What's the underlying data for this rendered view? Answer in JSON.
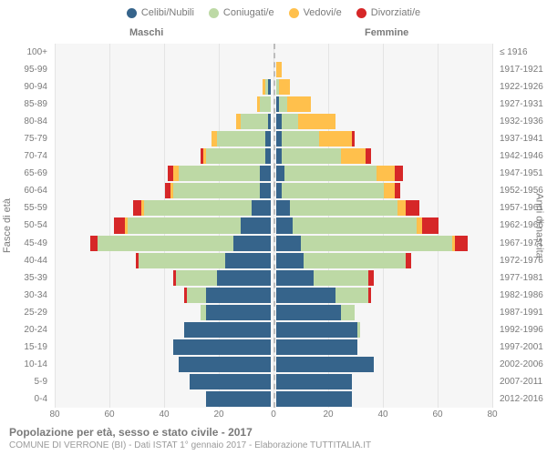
{
  "chart": {
    "type": "population-pyramid",
    "colors": {
      "celibi": "#36648b",
      "coniugati": "#bdd9a5",
      "vedovi": "#ffc04c",
      "divorziati": "#d62728",
      "background": "#f6f6f6",
      "grid": "#e4e4e4",
      "center_dash": "#bcbcbc",
      "text": "#7a7a7a"
    },
    "legend": [
      {
        "label": "Celibi/Nubili",
        "color": "celibi"
      },
      {
        "label": "Coniugati/e",
        "color": "coniugati"
      },
      {
        "label": "Vedovi/e",
        "color": "vedovi"
      },
      {
        "label": "Divorziati/e",
        "color": "divorziati"
      }
    ],
    "header_male": "Maschi",
    "header_female": "Femmine",
    "ytitle_left": "Fasce di età",
    "ytitle_right": "Anni di nascita",
    "xlim": 80,
    "xticks": [
      80,
      60,
      40,
      20,
      0,
      20,
      40,
      60,
      80
    ],
    "title": "Popolazione per età, sesso e stato civile - 2017",
    "subtitle": "COMUNE DI VERRONE (BI) - Dati ISTAT 1° gennaio 2017 - Elaborazione TUTTITALIA.IT",
    "bands": [
      {
        "age": "100+",
        "birth": "≤ 1916",
        "m": {
          "c": 0,
          "k": 0,
          "v": 0,
          "d": 0
        },
        "f": {
          "c": 0,
          "k": 0,
          "v": 0,
          "d": 0
        }
      },
      {
        "age": "95-99",
        "birth": "1917-1921",
        "m": {
          "c": 0,
          "k": 0,
          "v": 0,
          "d": 0
        },
        "f": {
          "c": 0,
          "k": 0,
          "v": 2,
          "d": 0
        }
      },
      {
        "age": "90-94",
        "birth": "1922-1926",
        "m": {
          "c": 1,
          "k": 1,
          "v": 1,
          "d": 0
        },
        "f": {
          "c": 0,
          "k": 1,
          "v": 4,
          "d": 0
        }
      },
      {
        "age": "85-89",
        "birth": "1927-1931",
        "m": {
          "c": 0,
          "k": 4,
          "v": 1,
          "d": 0
        },
        "f": {
          "c": 1,
          "k": 3,
          "v": 9,
          "d": 0
        }
      },
      {
        "age": "80-84",
        "birth": "1932-1936",
        "m": {
          "c": 1,
          "k": 10,
          "v": 2,
          "d": 0
        },
        "f": {
          "c": 2,
          "k": 6,
          "v": 14,
          "d": 0
        }
      },
      {
        "age": "75-79",
        "birth": "1937-1941",
        "m": {
          "c": 2,
          "k": 18,
          "v": 2,
          "d": 0
        },
        "f": {
          "c": 2,
          "k": 14,
          "v": 12,
          "d": 1
        }
      },
      {
        "age": "70-74",
        "birth": "1942-1946",
        "m": {
          "c": 2,
          "k": 22,
          "v": 1,
          "d": 1
        },
        "f": {
          "c": 2,
          "k": 22,
          "v": 9,
          "d": 2
        }
      },
      {
        "age": "65-69",
        "birth": "1947-1951",
        "m": {
          "c": 4,
          "k": 30,
          "v": 2,
          "d": 2
        },
        "f": {
          "c": 3,
          "k": 34,
          "v": 7,
          "d": 3
        }
      },
      {
        "age": "60-64",
        "birth": "1952-1956",
        "m": {
          "c": 4,
          "k": 32,
          "v": 1,
          "d": 2
        },
        "f": {
          "c": 2,
          "k": 38,
          "v": 4,
          "d": 2
        }
      },
      {
        "age": "55-59",
        "birth": "1957-1961",
        "m": {
          "c": 7,
          "k": 40,
          "v": 1,
          "d": 3
        },
        "f": {
          "c": 5,
          "k": 40,
          "v": 3,
          "d": 5
        }
      },
      {
        "age": "50-54",
        "birth": "1962-1966",
        "m": {
          "c": 11,
          "k": 42,
          "v": 1,
          "d": 4
        },
        "f": {
          "c": 6,
          "k": 46,
          "v": 2,
          "d": 6
        }
      },
      {
        "age": "45-49",
        "birth": "1967-1971",
        "m": {
          "c": 14,
          "k": 50,
          "v": 0,
          "d": 3
        },
        "f": {
          "c": 9,
          "k": 56,
          "v": 1,
          "d": 5
        }
      },
      {
        "age": "40-44",
        "birth": "1972-1976",
        "m": {
          "c": 17,
          "k": 32,
          "v": 0,
          "d": 1
        },
        "f": {
          "c": 10,
          "k": 38,
          "v": 0,
          "d": 2
        }
      },
      {
        "age": "35-39",
        "birth": "1977-1981",
        "m": {
          "c": 20,
          "k": 15,
          "v": 0,
          "d": 1
        },
        "f": {
          "c": 14,
          "k": 20,
          "v": 0,
          "d": 2
        }
      },
      {
        "age": "30-34",
        "birth": "1982-1986",
        "m": {
          "c": 24,
          "k": 7,
          "v": 0,
          "d": 1
        },
        "f": {
          "c": 22,
          "k": 12,
          "v": 0,
          "d": 1
        }
      },
      {
        "age": "25-29",
        "birth": "1987-1991",
        "m": {
          "c": 24,
          "k": 2,
          "v": 0,
          "d": 0
        },
        "f": {
          "c": 24,
          "k": 5,
          "v": 0,
          "d": 0
        }
      },
      {
        "age": "20-24",
        "birth": "1992-1996",
        "m": {
          "c": 32,
          "k": 0,
          "v": 0,
          "d": 0
        },
        "f": {
          "c": 30,
          "k": 1,
          "v": 0,
          "d": 0
        }
      },
      {
        "age": "15-19",
        "birth": "1997-2001",
        "m": {
          "c": 36,
          "k": 0,
          "v": 0,
          "d": 0
        },
        "f": {
          "c": 30,
          "k": 0,
          "v": 0,
          "d": 0
        }
      },
      {
        "age": "10-14",
        "birth": "2002-2006",
        "m": {
          "c": 34,
          "k": 0,
          "v": 0,
          "d": 0
        },
        "f": {
          "c": 36,
          "k": 0,
          "v": 0,
          "d": 0
        }
      },
      {
        "age": "5-9",
        "birth": "2007-2011",
        "m": {
          "c": 30,
          "k": 0,
          "v": 0,
          "d": 0
        },
        "f": {
          "c": 28,
          "k": 0,
          "v": 0,
          "d": 0
        }
      },
      {
        "age": "0-4",
        "birth": "2012-2016",
        "m": {
          "c": 24,
          "k": 0,
          "v": 0,
          "d": 0
        },
        "f": {
          "c": 28,
          "k": 0,
          "v": 0,
          "d": 0
        }
      }
    ]
  }
}
